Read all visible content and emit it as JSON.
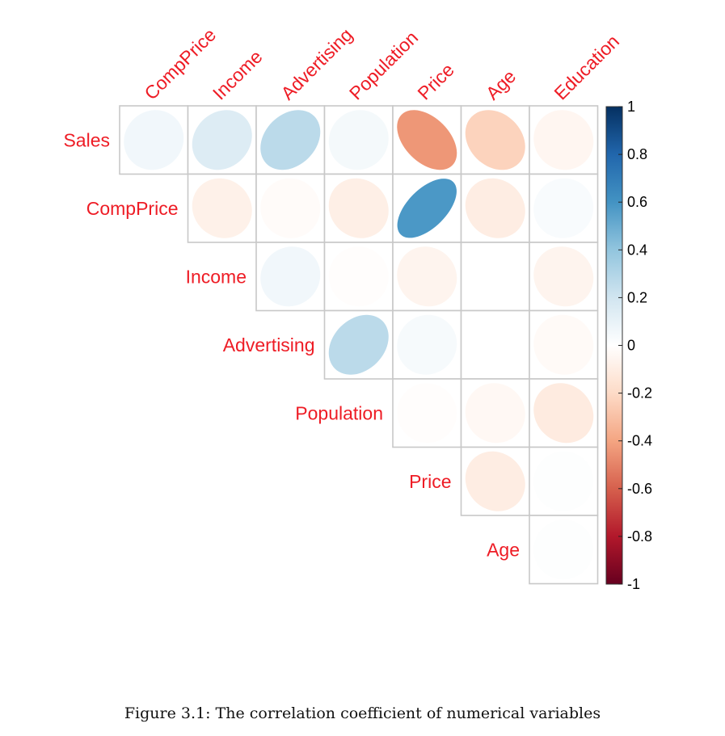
{
  "chart_data": {
    "type": "heatmap",
    "style": "correlation-ellipse-upper-triangle",
    "row_labels": [
      "Sales",
      "CompPrice",
      "Income",
      "Advertising",
      "Population",
      "Price",
      "Age"
    ],
    "column_labels": [
      "CompPrice",
      "Income",
      "Advertising",
      "Population",
      "Price",
      "Age",
      "Education"
    ],
    "matrix": [
      [
        0.06,
        0.15,
        0.27,
        0.05,
        -0.44,
        -0.23,
        -0.05
      ],
      [
        null,
        -0.08,
        -0.02,
        -0.09,
        0.58,
        -0.1,
        0.03
      ],
      [
        null,
        null,
        0.06,
        -0.01,
        -0.06,
        -0.0,
        -0.06
      ],
      [
        null,
        null,
        null,
        0.27,
        0.04,
        -0.0,
        -0.03
      ],
      [
        null,
        null,
        null,
        null,
        -0.01,
        -0.04,
        -0.11
      ],
      [
        null,
        null,
        null,
        null,
        null,
        -0.1,
        0.01
      ],
      [
        null,
        null,
        null,
        null,
        null,
        null,
        0.01
      ]
    ],
    "colorbar": {
      "ticks": [
        "1",
        "0.8",
        "0.6",
        "0.4",
        "0.2",
        "0",
        "-0.2",
        "-0.4",
        "-0.6",
        "-0.8",
        "-1"
      ],
      "range": [
        -1,
        1
      ]
    },
    "label_color": "#ee1c25",
    "grid_color": "#c8c8c8"
  },
  "caption": "Figure 3.1: The correlation coefficient of numerical variables"
}
